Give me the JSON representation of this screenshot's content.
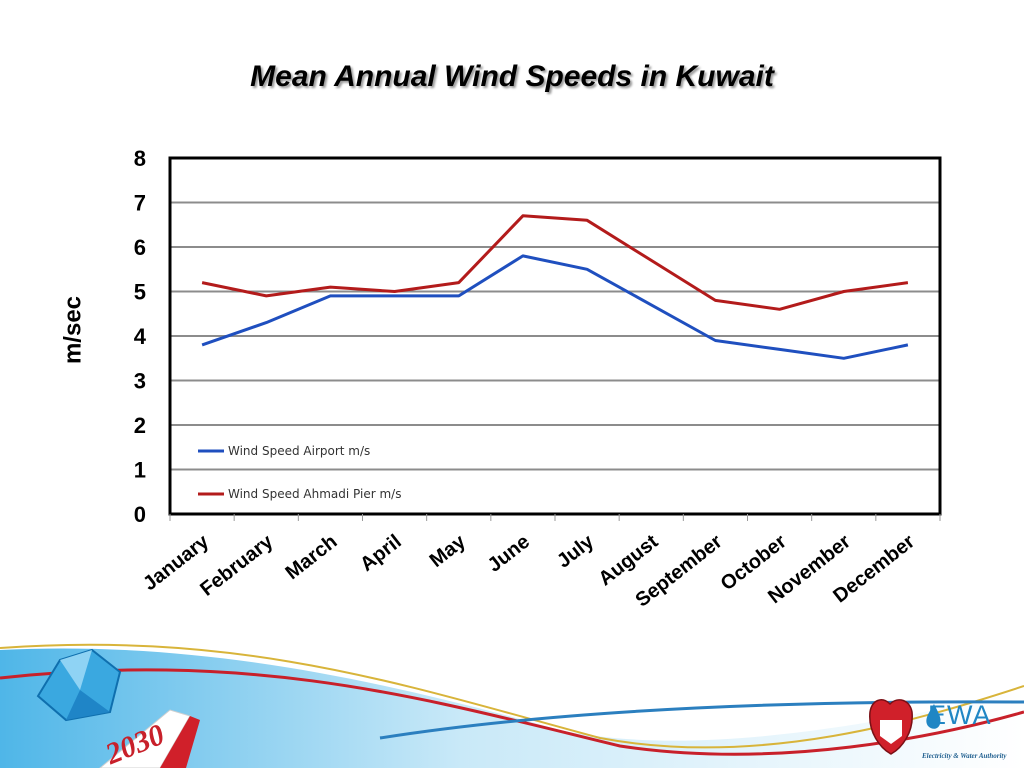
{
  "slide": {
    "title": "Mean Annual Wind Speeds in Kuwait",
    "footer": {
      "vision_badge": "2030",
      "org_name": "EWA",
      "org_subtitle": "Electricity & Water Authority"
    }
  },
  "chart_data": {
    "type": "line",
    "title": "",
    "xlabel": "",
    "ylabel": "m/sec",
    "ylim": [
      0,
      8
    ],
    "yticks": [
      "0",
      "1",
      "2",
      "3",
      "4",
      "5",
      "6",
      "7",
      "8"
    ],
    "grid": true,
    "legend_position": "bottom-left",
    "categories": [
      "January",
      "February",
      "March",
      "April",
      "May",
      "June",
      "July",
      "August",
      "September",
      "October",
      "November",
      "December"
    ],
    "series": [
      {
        "name": "Wind Speed Airport m/s",
        "color": "#1f4fbf",
        "values": [
          3.8,
          4.3,
          4.9,
          4.9,
          4.9,
          5.8,
          5.5,
          4.7,
          3.9,
          3.7,
          3.5,
          3.8
        ]
      },
      {
        "name": "Wind Speed Ahmadi Pier m/s",
        "color": "#b31b1b",
        "values": [
          5.2,
          4.9,
          5.1,
          5.0,
          5.2,
          6.7,
          6.6,
          5.7,
          4.8,
          4.6,
          5.0,
          5.2
        ]
      }
    ]
  }
}
